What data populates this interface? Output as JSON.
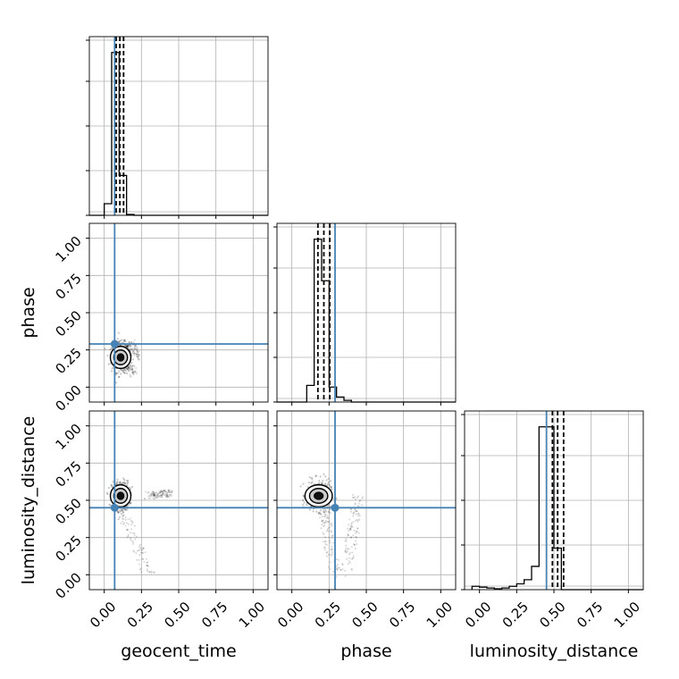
{
  "chart_data": {
    "type": "corner",
    "parameters": [
      "geocent_time",
      "phase",
      "luminosity_distance"
    ],
    "axis_range": [
      -0.1,
      1.1
    ],
    "ticks": [
      0.0,
      0.25,
      0.5,
      0.75,
      1.0
    ],
    "tick_labels": [
      "0.00",
      "0.25",
      "0.50",
      "0.75",
      "1.00"
    ],
    "truths": {
      "geocent_time": 0.07,
      "phase": 0.29,
      "luminosity_distance": 0.45
    },
    "quantiles": {
      "geocent_time": [
        0.08,
        0.105,
        0.13
      ],
      "phase": [
        0.175,
        0.215,
        0.255
      ],
      "luminosity_distance": [
        0.49,
        0.525,
        0.565
      ]
    },
    "grid": true,
    "colors": {
      "truth": "#4682b4",
      "hist": "#000000",
      "grid": "#b0b0b0",
      "points": "#000000"
    },
    "histograms": {
      "geocent_time": {
        "edges": [
          -0.1,
          -0.05,
          0.0,
          0.05,
          0.1,
          0.15,
          0.2,
          0.25,
          0.3,
          0.35,
          0.4,
          0.45,
          0.5,
          0.55,
          0.6,
          0.65,
          0.7,
          0.75,
          0.8,
          0.85,
          0.9,
          0.95,
          1.0,
          1.05,
          1.1
        ],
        "counts": [
          0,
          0,
          0.07,
          0.98,
          0.24,
          0.005,
          0,
          0,
          0,
          0,
          0,
          0,
          0,
          0,
          0,
          0,
          0,
          0,
          0,
          0,
          0,
          0,
          0,
          0
        ]
      },
      "phase": {
        "edges": [
          -0.1,
          -0.05,
          0.0,
          0.05,
          0.1,
          0.15,
          0.2,
          0.25,
          0.3,
          0.35,
          0.4,
          0.45,
          0.5,
          0.55,
          0.6,
          0.65,
          0.7,
          0.75,
          0.8,
          0.85,
          0.9,
          0.95,
          1.0,
          1.05,
          1.1
        ],
        "counts": [
          0,
          0,
          0,
          0,
          0.1,
          0.98,
          0.73,
          0.09,
          0.03,
          0.01,
          0,
          0,
          0,
          0,
          0,
          0,
          0,
          0,
          0,
          0,
          0,
          0,
          0,
          0
        ]
      },
      "luminosity_distance": {
        "edges": [
          -0.05,
          0.0,
          0.05,
          0.1,
          0.15,
          0.2,
          0.25,
          0.3,
          0.35,
          0.4,
          0.45,
          0.5,
          0.55,
          0.6,
          0.65,
          0.7,
          0.75,
          0.8,
          0.85,
          0.9,
          0.95,
          1.0,
          1.05,
          1.1
        ],
        "counts": [
          0.02,
          0.015,
          0.01,
          0.005,
          0.01,
          0.02,
          0.035,
          0.06,
          0.14,
          0.98,
          0.98,
          0.25,
          0,
          0,
          0,
          0,
          0,
          0,
          0,
          0,
          0,
          0,
          0
        ]
      }
    },
    "scatter_2d": {
      "phase_vs_geocent_time": {
        "center": [
          0.11,
          0.2
        ],
        "spread": [
          0.03,
          0.05
        ],
        "tail": [
          [
            0.1,
            0.25,
            0.1
          ],
          [
            0.2,
            0.15,
            0.3
          ]
        ]
      },
      "luminosity_distance_vs_geocent_time": {
        "center": [
          0.11,
          0.53
        ],
        "spread": [
          0.03,
          0.05
        ],
        "tail": [
          [
            0.08,
            0.45,
            0.0
          ],
          [
            0.3,
            0.55,
            0.55
          ]
        ]
      },
      "luminosity_distance_vs_phase": {
        "center": [
          0.18,
          0.53
        ],
        "spread": [
          0.04,
          0.05
        ],
        "tail": [
          [
            0.2,
            0.35,
            0.0
          ],
          [
            0.45,
            0.3,
            0.0
          ]
        ]
      }
    }
  }
}
